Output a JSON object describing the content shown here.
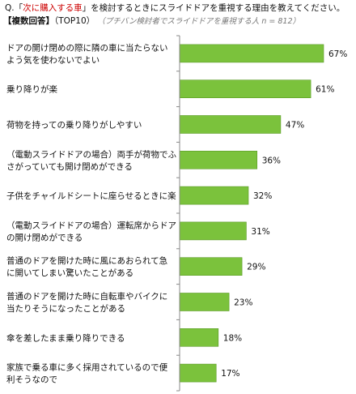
{
  "header": {
    "question_prefix": "Q.「",
    "question_highlight": "次に購入する車",
    "question_suffix": "」を検討するときにスライドドアを重視する理由を教えてください。",
    "answer_type": "【複数回答】",
    "top": "（TOP10）",
    "note": "（プチバン検討者でスライドドアを重視する人  n = 812）"
  },
  "colors": {
    "bar": "#7bc23c",
    "bar_edge": "#5a9a26",
    "axis": "#888888"
  },
  "chart_data": {
    "type": "bar",
    "orientation": "horizontal",
    "title": "",
    "xlabel": "",
    "ylabel": "",
    "xlim": [
      0,
      70
    ],
    "grid": false,
    "categories": [
      [
        "ドアの開け閉めの際に隣の車に当たらない",
        "よう気を使わないでよい"
      ],
      [
        "乗り降りが楽"
      ],
      [
        "荷物を持っての乗り降りがしやすい"
      ],
      [
        "（電動スライドドアの場合）両手が荷物でふ",
        "さがっていても開け閉めができる"
      ],
      [
        "子供をチャイルドシートに座らせるときに楽"
      ],
      [
        "（電動スライドドアの場合）運転席からドア",
        "の開け閉めができる"
      ],
      [
        "普通のドアを開けた時に風にあおられて急",
        "に開いてしまい驚いたことがある"
      ],
      [
        "普通のドアを開けた時に自転車やバイクに",
        "当たりそうになったことがある"
      ],
      [
        "傘を差したまま乗り降りできる"
      ],
      [
        "家族で乗る車に多く採用されているので便",
        "利そうなので"
      ]
    ],
    "values": [
      67,
      61,
      47,
      36,
      32,
      31,
      29,
      23,
      18,
      17
    ],
    "value_labels": [
      "67%",
      "61%",
      "47%",
      "36%",
      "32%",
      "31%",
      "29%",
      "23%",
      "18%",
      "17%"
    ]
  }
}
